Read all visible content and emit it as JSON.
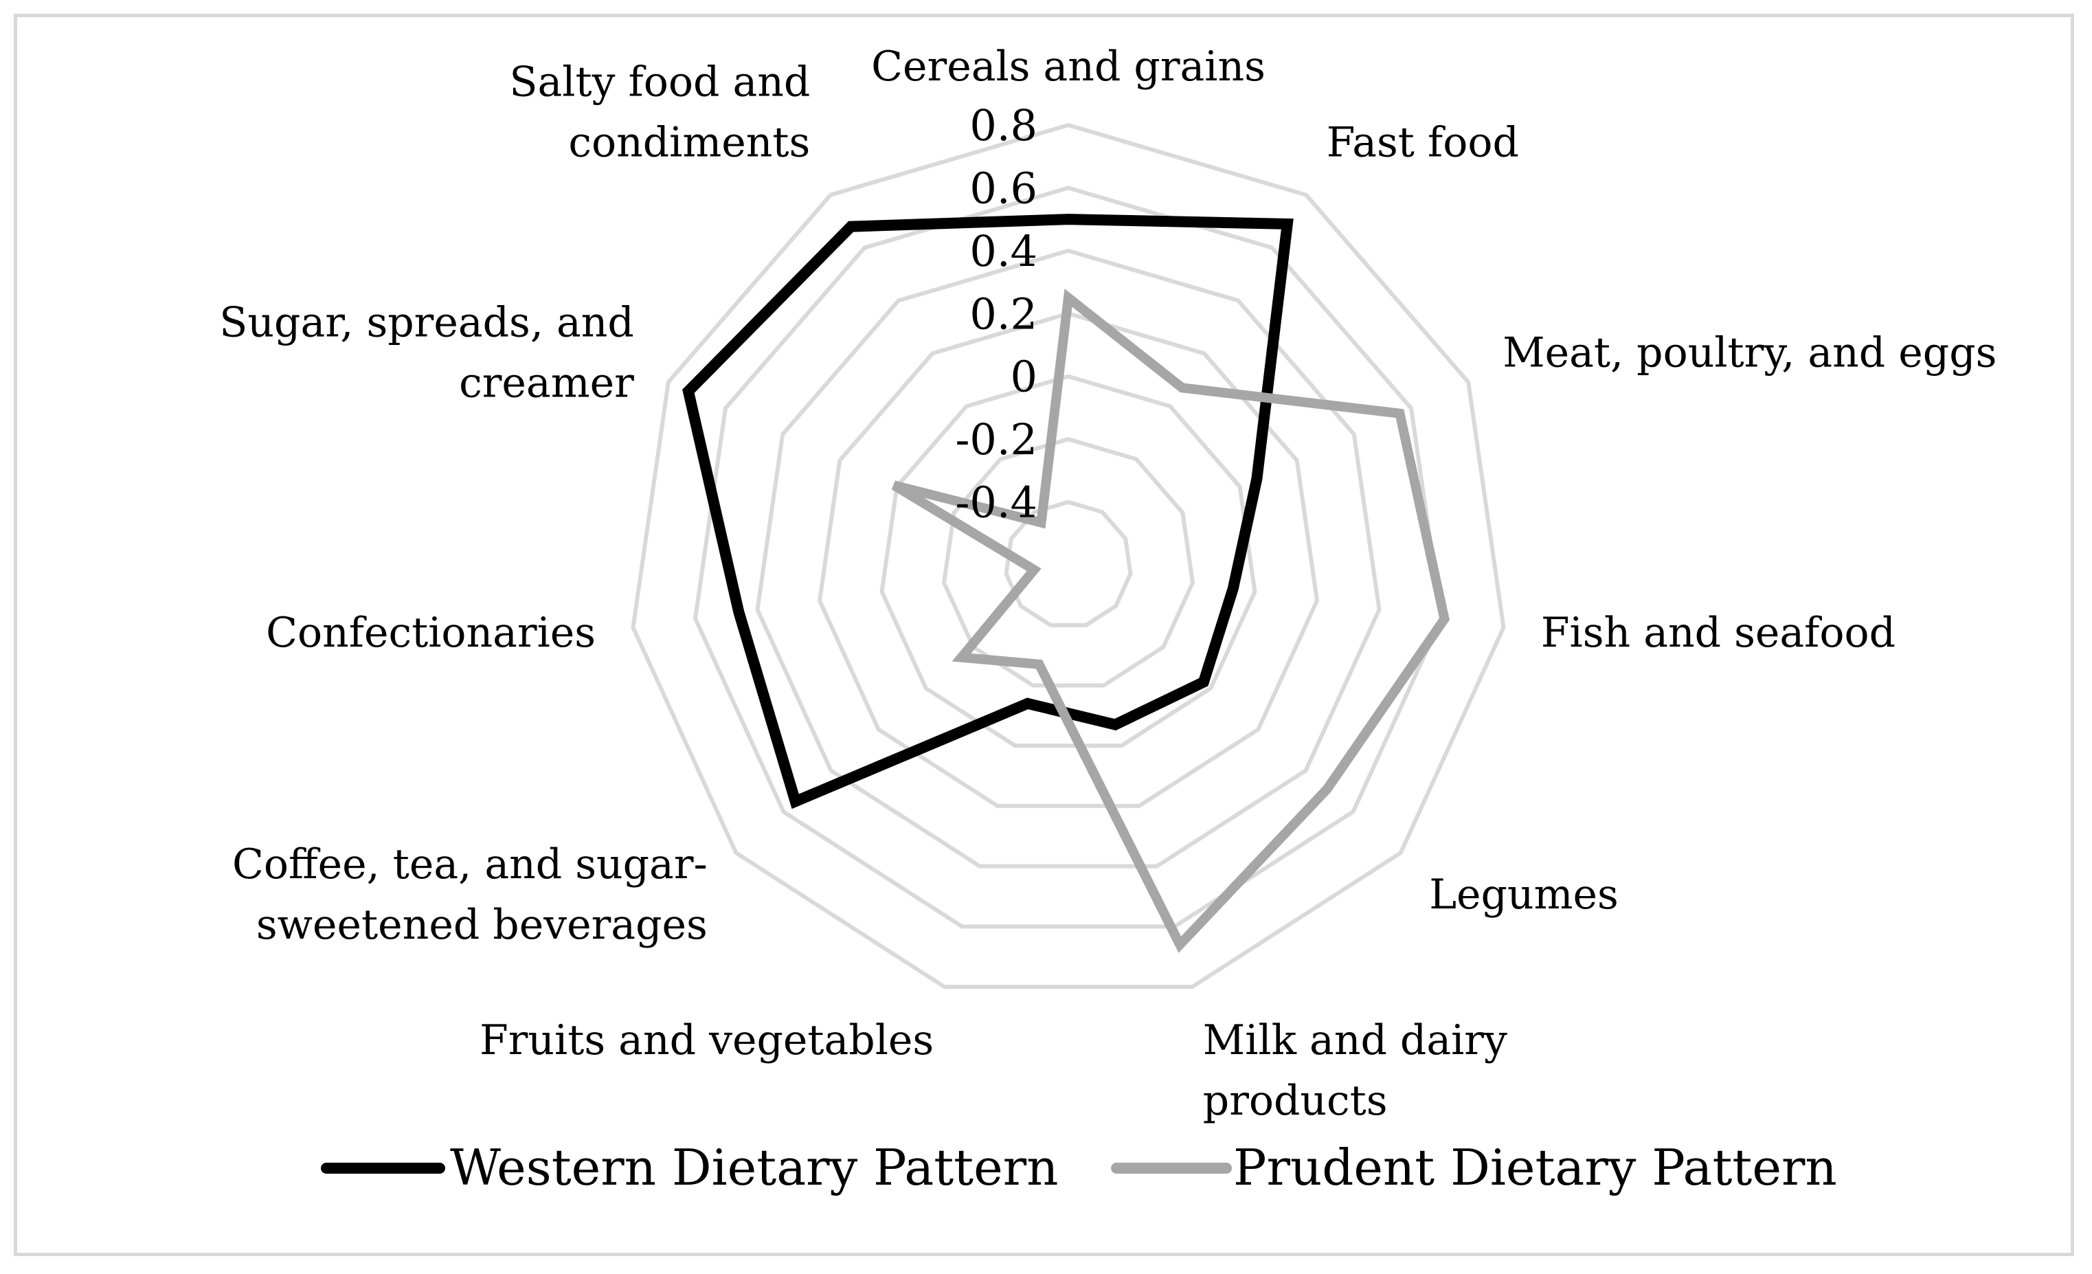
{
  "chart_data": {
    "type": "radar",
    "categories": [
      "Cereals and grains",
      "Fast food",
      "Meat, poultry, and eggs",
      "Fish and seafood",
      "Legumes",
      "Milk and dairy products",
      "Fruits and vegetables",
      "Coffee, tea, and sugar-sweetened beverages",
      "Confectionaries",
      "Sugar, spreads, and creamer",
      "Salty food and condiments"
    ],
    "category_lines": [
      [
        "Cereals and grains"
      ],
      [
        "Fast food"
      ],
      [
        "Meat, poultry, and eggs"
      ],
      [
        "Fish and seafood"
      ],
      [
        "Legumes"
      ],
      [
        "Milk and dairy",
        "products"
      ],
      [
        "Fruits and vegetables"
      ],
      [
        "Coffee, tea, and sugar-",
        "sweetened beverages"
      ],
      [
        "Confectionaries"
      ],
      [
        "Sugar, spreads, and",
        "creamer"
      ],
      [
        "Salty food and",
        "condiments"
      ]
    ],
    "ticks": [
      "-0.4",
      "-0.2",
      "0",
      "0.2",
      "0.4",
      "0.6",
      "0.8"
    ],
    "tick_values": [
      -0.4,
      -0.2,
      0,
      0.2,
      0.4,
      0.6,
      0.8
    ],
    "rlim": [
      -0.6,
      0.8
    ],
    "grid": true,
    "legend_position": "bottom",
    "series": [
      {
        "name": "Western Dietary Pattern",
        "color": "#000000",
        "values": [
          0.5,
          0.69,
          0.06,
          -0.07,
          -0.03,
          -0.07,
          -0.14,
          0.55,
          0.46,
          0.73,
          0.68
        ]
      },
      {
        "name": "Prudent Dietary Pattern",
        "color": "#a6a6a6",
        "values": [
          0.25,
          0.07,
          0.56,
          0.61,
          0.49,
          0.66,
          -0.27,
          -0.15,
          -0.49,
          0.01,
          -0.44
        ]
      }
    ]
  }
}
